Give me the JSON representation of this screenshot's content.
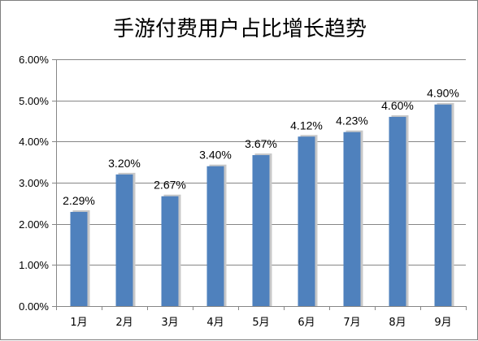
{
  "chart_data": {
    "type": "bar",
    "title": "手游付费用户占比增长趋势",
    "xlabel": "",
    "ylabel": "",
    "categories": [
      "1月",
      "2月",
      "3月",
      "4月",
      "5月",
      "6月",
      "7月",
      "8月",
      "9月"
    ],
    "values": [
      2.29,
      3.2,
      2.67,
      3.4,
      3.67,
      4.12,
      4.23,
      4.6,
      4.9
    ],
    "data_labels": [
      "2.29%",
      "3.20%",
      "2.67%",
      "3.40%",
      "3.67%",
      "4.12%",
      "4.23%",
      "4.60%",
      "4.90%"
    ],
    "yticks": [
      "0.00%",
      "1.00%",
      "2.00%",
      "3.00%",
      "4.00%",
      "5.00%",
      "6.00%"
    ],
    "ylim": [
      0,
      6
    ],
    "grid": true,
    "legend": "none",
    "colors": {
      "bar": "#4f81bd",
      "bar_shadow": "#c8c8c8",
      "grid": "#868686"
    }
  }
}
